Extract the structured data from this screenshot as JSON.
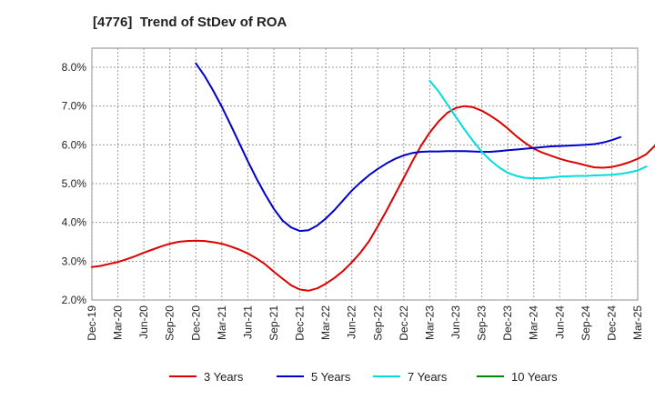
{
  "chart_data": {
    "type": "line",
    "title": "[4776]  Trend of StDev of ROA",
    "xlabel": "",
    "ylabel": "",
    "x_ticks": [
      "Dec-19",
      "Mar-20",
      "Jun-20",
      "Sep-20",
      "Dec-20",
      "Mar-21",
      "Jun-21",
      "Sep-21",
      "Dec-21",
      "Mar-22",
      "Jun-22",
      "Sep-22",
      "Dec-22",
      "Mar-23",
      "Jun-23",
      "Sep-23",
      "Dec-23",
      "Mar-24",
      "Jun-24",
      "Sep-24",
      "Dec-24",
      "Mar-25"
    ],
    "y_ticks": [
      "8.0%",
      "7.0%",
      "6.0%",
      "5.0%",
      "4.0%",
      "3.0%",
      "2.0%"
    ],
    "ylim": [
      2.0,
      8.5
    ],
    "grid": true,
    "legend_position": "bottom",
    "series": [
      {
        "name": "3 Years",
        "color": "#dd0000",
        "values": [
          2.85,
          2.88,
          2.93,
          2.98,
          3.05,
          3.13,
          3.22,
          3.3,
          3.38,
          3.45,
          3.5,
          3.52,
          3.53,
          3.52,
          3.49,
          3.45,
          3.38,
          3.3,
          3.2,
          3.07,
          2.92,
          2.73,
          2.55,
          2.38,
          2.27,
          2.24,
          2.3,
          2.42,
          2.57,
          2.75,
          2.97,
          3.22,
          3.52,
          3.9,
          4.3,
          4.72,
          5.15,
          5.58,
          5.98,
          6.32,
          6.6,
          6.82,
          6.95,
          7.0,
          6.97,
          6.88,
          6.75,
          6.6,
          6.42,
          6.22,
          6.05,
          5.9,
          5.8,
          5.72,
          5.64,
          5.58,
          5.53,
          5.47,
          5.42,
          5.41,
          5.43,
          5.48,
          5.55,
          5.64,
          5.76,
          5.98,
          6.48
        ]
      },
      {
        "name": "5 Years",
        "color": "#0000cc",
        "start_index": 12,
        "values": [
          8.1,
          7.78,
          7.4,
          6.98,
          6.52,
          6.05,
          5.58,
          5.13,
          4.72,
          4.35,
          4.05,
          3.87,
          3.78,
          3.8,
          3.92,
          4.1,
          4.32,
          4.57,
          4.82,
          5.03,
          5.22,
          5.38,
          5.52,
          5.64,
          5.73,
          5.79,
          5.82,
          5.83,
          5.83,
          5.84,
          5.84,
          5.84,
          5.83,
          5.82,
          5.82,
          5.84,
          5.86,
          5.88,
          5.9,
          5.92,
          5.94,
          5.96,
          5.97,
          5.98,
          5.99,
          6.0,
          6.02,
          6.06,
          6.12,
          6.2
        ]
      },
      {
        "name": "7 Years",
        "color": "#00dddd",
        "start_index": 39,
        "values": [
          7.65,
          7.38,
          7.05,
          6.72,
          6.4,
          6.1,
          5.82,
          5.6,
          5.42,
          5.28,
          5.2,
          5.15,
          5.14,
          5.14,
          5.16,
          5.18,
          5.19,
          5.2,
          5.2,
          5.21,
          5.22,
          5.23,
          5.25,
          5.29,
          5.34,
          5.44
        ]
      },
      {
        "name": "10 Years",
        "color": "#008800",
        "values": []
      }
    ]
  }
}
